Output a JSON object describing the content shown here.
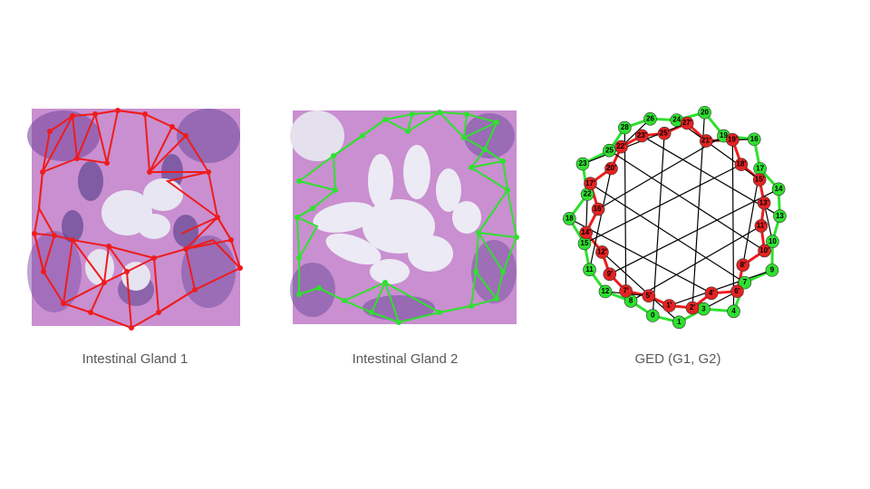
{
  "captions": [
    "Intestinal Gland 1",
    "Intestinal Gland 2",
    "GED (G1, G2)"
  ],
  "ged_graph": {
    "g2_nodes": [
      "0",
      "1",
      "3",
      "4",
      "7",
      "9",
      "10",
      "13",
      "14",
      "17",
      "16",
      "19",
      "20",
      "24",
      "26",
      "28",
      "25",
      "23",
      "22",
      "18",
      "15",
      "11",
      "12",
      "8"
    ],
    "g1_nodes": [
      "1'",
      "2'",
      "4'",
      "6'",
      "8'",
      "10'",
      "11'",
      "13'",
      "15'",
      "18'",
      "19'",
      "21'",
      "27'",
      "25'",
      "23'",
      "22'",
      "20'",
      "17'",
      "16'",
      "14'",
      "12'",
      "9'",
      "7'",
      "5'"
    ]
  }
}
